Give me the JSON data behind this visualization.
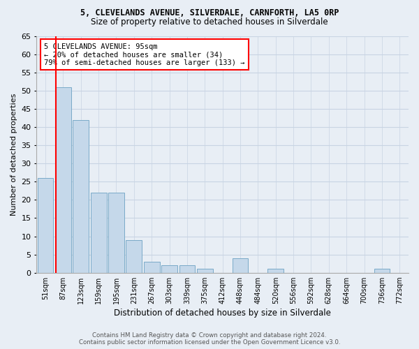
{
  "title1": "5, CLEVELANDS AVENUE, SILVERDALE, CARNFORTH, LA5 0RP",
  "title2": "Size of property relative to detached houses in Silverdale",
  "xlabel": "Distribution of detached houses by size in Silverdale",
  "ylabel": "Number of detached properties",
  "categories": [
    "51sqm",
    "87sqm",
    "123sqm",
    "159sqm",
    "195sqm",
    "231sqm",
    "267sqm",
    "303sqm",
    "339sqm",
    "375sqm",
    "412sqm",
    "448sqm",
    "484sqm",
    "520sqm",
    "556sqm",
    "592sqm",
    "628sqm",
    "664sqm",
    "700sqm",
    "736sqm",
    "772sqm"
  ],
  "values": [
    26,
    51,
    42,
    22,
    22,
    9,
    3,
    2,
    2,
    1,
    0,
    4,
    0,
    1,
    0,
    0,
    0,
    0,
    0,
    1,
    0
  ],
  "bar_color": "#c5d8ea",
  "bar_edge_color": "#7aaac8",
  "annotation_text1": "5 CLEVELANDS AVENUE: 95sqm",
  "annotation_text2": "← 20% of detached houses are smaller (34)",
  "annotation_text3": "79% of semi-detached houses are larger (133) →",
  "annotation_box_facecolor": "white",
  "annotation_box_edgecolor": "red",
  "vline_color": "red",
  "vline_x": 0.575,
  "ylim": [
    0,
    65
  ],
  "yticks": [
    0,
    5,
    10,
    15,
    20,
    25,
    30,
    35,
    40,
    45,
    50,
    55,
    60,
    65
  ],
  "grid_color": "#c8d4e3",
  "bg_color": "#e8eef5",
  "title1_fontsize": 8.5,
  "title2_fontsize": 8.5,
  "footer1": "Contains HM Land Registry data © Crown copyright and database right 2024.",
  "footer2": "Contains public sector information licensed under the Open Government Licence v3.0."
}
